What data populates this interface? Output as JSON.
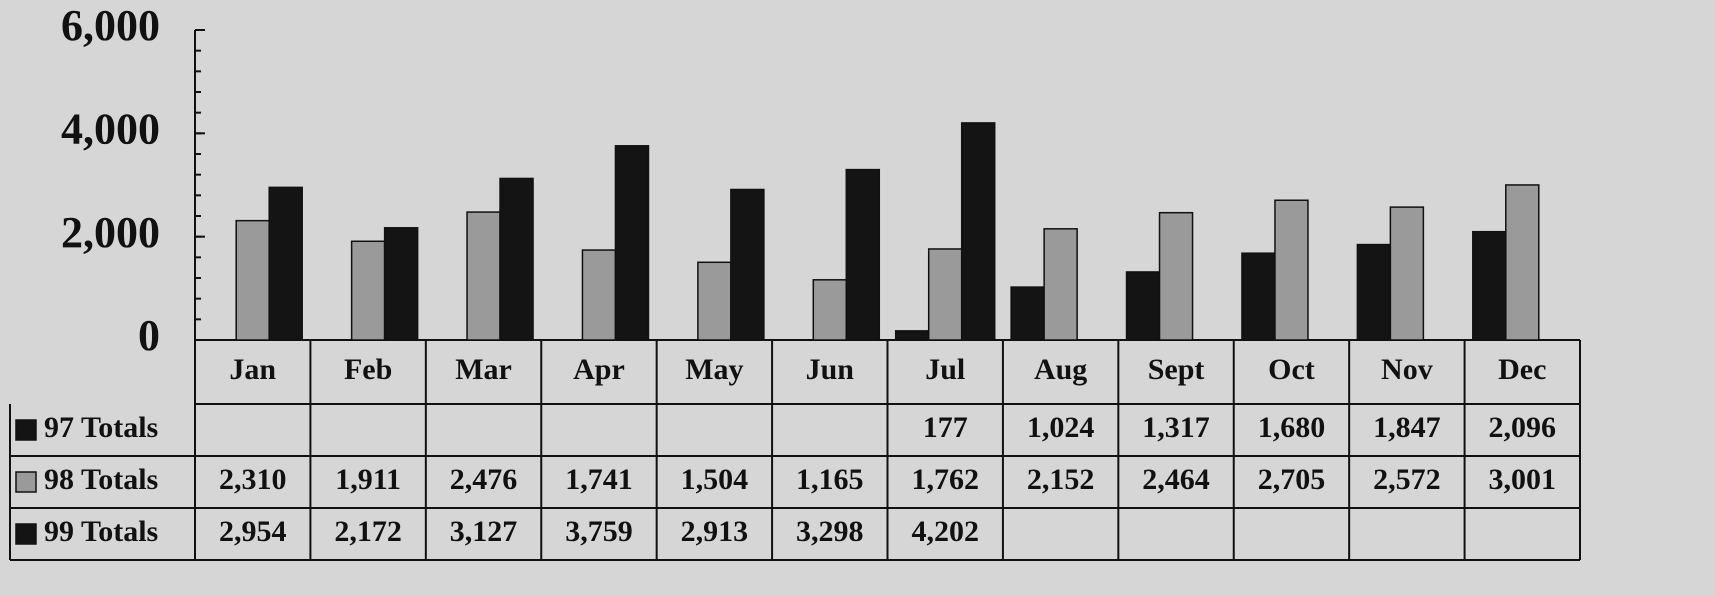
{
  "chart_data": {
    "type": "bar",
    "categories": [
      "Jan",
      "Feb",
      "Mar",
      "Apr",
      "May",
      "Jun",
      "Jul",
      "Aug",
      "Sept",
      "Oct",
      "Nov",
      "Dec"
    ],
    "series": [
      {
        "name": "97 Totals",
        "color": "#141414",
        "values": [
          null,
          null,
          null,
          null,
          null,
          null,
          177,
          1024,
          1317,
          1680,
          1847,
          2096
        ],
        "value_labels": [
          null,
          null,
          null,
          null,
          null,
          null,
          "177",
          "1,024",
          "1,317",
          "1,680",
          "1,847",
          "2,096"
        ]
      },
      {
        "name": "98 Totals",
        "color": "#9a9a9a",
        "values": [
          2310,
          1911,
          2476,
          1741,
          1504,
          1165,
          1762,
          2152,
          2464,
          2705,
          2572,
          3001
        ],
        "value_labels": [
          "2,310",
          "1,911",
          "2,476",
          "1,741",
          "1,504",
          "1,165",
          "1,762",
          "2,152",
          "2,464",
          "2,705",
          "2,572",
          "3,001"
        ]
      },
      {
        "name": "99 Totals",
        "color": "#141414",
        "values": [
          2954,
          2172,
          3127,
          3759,
          2913,
          3298,
          4202,
          null,
          null,
          null,
          null,
          null
        ],
        "value_labels": [
          "2,954",
          "2,172",
          "3,127",
          "3,759",
          "2,913",
          "3,298",
          "4,202",
          null,
          null,
          null,
          null,
          null
        ]
      }
    ],
    "ylim": [
      0,
      6000
    ],
    "yticks": [
      0,
      {
        "value": 2000,
        "label": "2,000"
      },
      {
        "value": 4000,
        "label": "4,000"
      },
      {
        "value": 6000,
        "label": "6,000"
      }
    ]
  }
}
